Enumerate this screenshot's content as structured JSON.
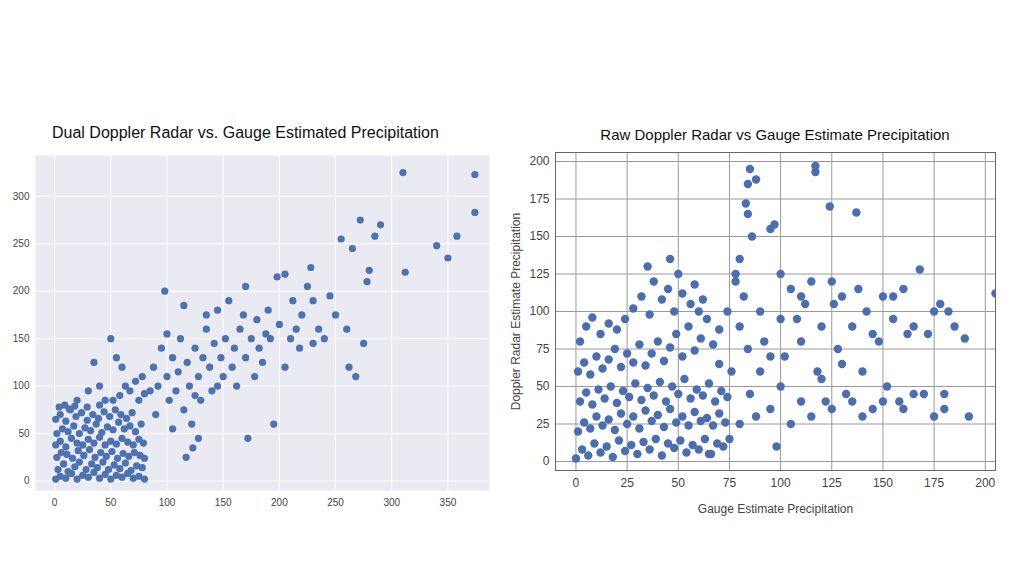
{
  "chart_data": [
    {
      "type": "scatter",
      "title": "Dual Doppler Radar vs. Gauge Estimated Precipitation",
      "color": "#4c72b0",
      "grid": true,
      "xlim": [
        -17,
        387
      ],
      "ylim": [
        -10,
        343
      ],
      "xticks": [
        0,
        50,
        100,
        150,
        200,
        250,
        300,
        350
      ],
      "yticks": [
        0,
        50,
        100,
        150,
        200,
        250,
        300
      ],
      "x": [
        1,
        5,
        10,
        15,
        20,
        25,
        30,
        35,
        40,
        45,
        50,
        55,
        60,
        65,
        70,
        75,
        80,
        3,
        8,
        12,
        18,
        22,
        28,
        33,
        38,
        43,
        48,
        53,
        58,
        63,
        68,
        73,
        78,
        2,
        6,
        11,
        16,
        21,
        26,
        31,
        36,
        41,
        46,
        51,
        56,
        61,
        66,
        71,
        76,
        80,
        1,
        5,
        10,
        15,
        20,
        25,
        30,
        35,
        40,
        45,
        50,
        55,
        60,
        65,
        70,
        75,
        79,
        2,
        7,
        12,
        17,
        22,
        27,
        32,
        37,
        42,
        47,
        52,
        57,
        62,
        67,
        72,
        77,
        1,
        5,
        10,
        14,
        19,
        24,
        29,
        34,
        39,
        44,
        49,
        54,
        59,
        64,
        69,
        4,
        9,
        13,
        18,
        29,
        40,
        52,
        58,
        63,
        67,
        72,
        75,
        78,
        80,
        45,
        35,
        50,
        40,
        60,
        30,
        20,
        55,
        85,
        88,
        90,
        92,
        95,
        98,
        100,
        102,
        105,
        108,
        110,
        112,
        115,
        118,
        120,
        122,
        125,
        128,
        130,
        132,
        135,
        138,
        140,
        142,
        145,
        148,
        150,
        152,
        155,
        158,
        160,
        162,
        165,
        168,
        170,
        172,
        175,
        178,
        180,
        182,
        185,
        188,
        190,
        192,
        195,
        198,
        200,
        205,
        210,
        212,
        215,
        218,
        220,
        225,
        228,
        230,
        235,
        240,
        245,
        250,
        255,
        260,
        262,
        265,
        268,
        272,
        275,
        278,
        280,
        285,
        290,
        312,
        310,
        340,
        350,
        358,
        374,
        374,
        135,
        125,
        123,
        117,
        105,
        100,
        115,
        128,
        145,
        170,
        205,
        230
      ],
      "values": [
        2,
        5,
        3,
        8,
        2,
        6,
        4,
        9,
        3,
        7,
        2,
        6,
        4,
        8,
        3,
        5,
        2,
        12,
        18,
        10,
        15,
        20,
        12,
        18,
        14,
        20,
        12,
        17,
        13,
        19,
        11,
        16,
        14,
        25,
        30,
        28,
        24,
        32,
        27,
        33,
        25,
        30,
        26,
        31,
        24,
        29,
        26,
        30,
        27,
        24,
        38,
        42,
        36,
        45,
        40,
        38,
        44,
        40,
        46,
        38,
        42,
        39,
        45,
        41,
        38,
        44,
        40,
        50,
        55,
        52,
        58,
        50,
        56,
        53,
        60,
        51,
        57,
        54,
        62,
        55,
        58,
        52,
        60,
        65,
        70,
        63,
        75,
        68,
        72,
        64,
        70,
        66,
        73,
        68,
        75,
        70,
        66,
        72,
        78,
        80,
        76,
        79,
        78,
        80,
        85,
        90,
        100,
        95,
        105,
        85,
        110,
        92,
        85,
        125,
        150,
        100,
        120,
        95,
        85,
        130,
        95,
        120,
        70,
        100,
        140,
        200,
        110,
        85,
        130,
        95,
        115,
        150,
        75,
        125,
        100,
        60,
        140,
        110,
        85,
        130,
        160,
        120,
        95,
        145,
        180,
        130,
        110,
        150,
        190,
        120,
        140,
        100,
        160,
        175,
        130,
        45,
        150,
        110,
        170,
        140,
        125,
        155,
        180,
        150,
        60,
        215,
        165,
        218,
        150,
        190,
        160,
        140,
        175,
        205,
        225,
        190,
        160,
        150,
        195,
        175,
        255,
        160,
        120,
        245,
        110,
        275,
        145,
        210,
        222,
        258,
        270,
        220,
        325,
        248,
        235,
        258,
        323,
        283,
        175,
        90,
        35,
        25,
        55,
        155,
        185,
        45,
        100,
        205,
        120,
        145
      ]
    },
    {
      "type": "scatter",
      "title": "Raw Doppler Radar vs Gauge Estimate Precipitation",
      "color": "#4a6eb0",
      "grid": true,
      "xlabel": "Gauge Estimate Precipitation",
      "ylabel": "Doppler Radar Estimate Precipitation",
      "xlim": [
        -10,
        205
      ],
      "ylim": [
        -6,
        206
      ],
      "xticks": [
        0,
        25,
        50,
        75,
        100,
        125,
        150,
        175,
        200
      ],
      "yticks": [
        0,
        25,
        50,
        75,
        100,
        125,
        150,
        175,
        200
      ],
      "x": [
        0,
        3,
        6,
        9,
        12,
        15,
        18,
        21,
        24,
        27,
        30,
        33,
        36,
        39,
        42,
        45,
        48,
        51,
        54,
        57,
        60,
        63,
        66,
        69,
        72,
        1,
        4,
        7,
        10,
        13,
        16,
        19,
        22,
        25,
        28,
        31,
        34,
        37,
        40,
        43,
        46,
        49,
        52,
        55,
        58,
        61,
        64,
        67,
        70,
        73,
        2,
        5,
        8,
        11,
        14,
        17,
        20,
        23,
        26,
        29,
        32,
        35,
        38,
        41,
        44,
        47,
        50,
        53,
        56,
        59,
        62,
        65,
        68,
        71,
        74,
        1,
        4,
        7,
        10,
        13,
        16,
        19,
        22,
        25,
        28,
        31,
        34,
        37,
        40,
        43,
        46,
        49,
        52,
        55,
        58,
        61,
        64,
        67,
        70,
        74,
        2,
        5,
        8,
        12,
        16,
        20,
        24,
        28,
        32,
        36,
        38,
        42,
        45,
        48,
        50,
        52,
        58,
        62,
        35,
        46,
        76,
        78,
        80,
        82,
        84,
        85,
        84,
        83,
        84,
        86,
        88,
        78,
        80,
        90,
        92,
        95,
        97,
        100,
        102,
        105,
        108,
        110,
        112,
        115,
        117,
        117,
        118,
        120,
        122,
        124,
        126,
        128,
        130,
        132,
        135,
        137,
        138,
        140,
        142,
        145,
        148,
        150,
        152,
        155,
        158,
        160,
        162,
        165,
        168,
        172,
        175,
        178,
        180,
        182,
        185,
        190,
        192,
        205,
        175,
        180,
        90,
        95,
        100,
        105,
        110,
        115,
        120,
        125,
        130,
        135,
        140,
        145,
        150,
        155,
        160,
        165,
        170,
        100,
        110,
        125,
        95,
        85,
        80,
        88,
        98,
        65,
        75,
        70,
        60,
        56
      ],
      "values": [
        2,
        8,
        4,
        12,
        6,
        10,
        3,
        14,
        7,
        11,
        5,
        13,
        8,
        15,
        4,
        12,
        9,
        14,
        6,
        11,
        8,
        15,
        5,
        12,
        10,
        20,
        26,
        22,
        30,
        24,
        28,
        21,
        32,
        25,
        30,
        22,
        34,
        27,
        31,
        23,
        35,
        26,
        30,
        24,
        33,
        27,
        29,
        24,
        32,
        26,
        40,
        46,
        38,
        48,
        42,
        50,
        39,
        47,
        43,
        52,
        41,
        49,
        44,
        53,
        40,
        50,
        45,
        55,
        42,
        48,
        44,
        52,
        40,
        47,
        43,
        60,
        66,
        58,
        70,
        62,
        68,
        75,
        63,
        72,
        66,
        78,
        64,
        72,
        80,
        67,
        76,
        85,
        70,
        90,
        74,
        82,
        95,
        78,
        88,
        100,
        80,
        90,
        96,
        85,
        92,
        88,
        95,
        102,
        110,
        98,
        120,
        108,
        115,
        100,
        125,
        112,
        118,
        108,
        130,
        135,
        60,
        120,
        90,
        110,
        75,
        195,
        185,
        172,
        165,
        150,
        188,
        125,
        135,
        100,
        80,
        155,
        158,
        125,
        70,
        115,
        95,
        80,
        105,
        120,
        197,
        193,
        60,
        90,
        40,
        170,
        105,
        75,
        110,
        45,
        90,
        166,
        115,
        60,
        100,
        35,
        80,
        110,
        50,
        95,
        40,
        115,
        85,
        45,
        128,
        85,
        100,
        105,
        35,
        100,
        90,
        82,
        30,
        112,
        30,
        45,
        60,
        35,
        50,
        25,
        40,
        30,
        55,
        35,
        65,
        40,
        30,
        85,
        40,
        110,
        35,
        90,
        45,
        95,
        110,
        120,
        70,
        45,
        25,
        30,
        10,
        5,
        15,
        65,
        100,
        105
      ]
    }
  ]
}
